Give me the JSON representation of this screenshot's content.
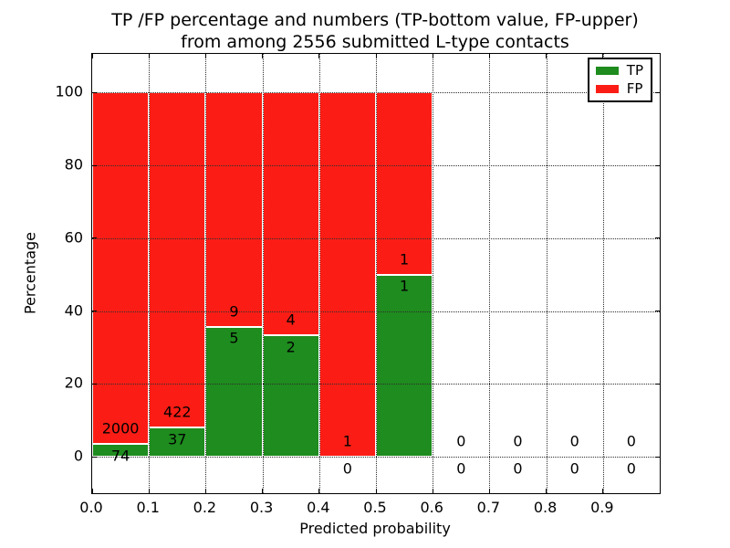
{
  "figure": {
    "title_line1": "TP /FP percentage and numbers (TP-bottom value, FP-upper)",
    "title_line2": "from among 2556 submitted L-type contacts",
    "xlabel": "Predicted probability",
    "ylabel": "Percentage"
  },
  "legend": {
    "entries": [
      {
        "label": "TP",
        "color": "#1e8c1e"
      },
      {
        "label": "FP",
        "color": "#fb1d15"
      }
    ]
  },
  "colors": {
    "tp": "#1e8c1e",
    "fp": "#fb1d15",
    "grid": "#2e2e2e",
    "bar_edge": "#ffffff",
    "text": "#000000",
    "background": "#ffffff"
  },
  "chart_data": {
    "type": "bar",
    "stacked": true,
    "title": "TP /FP percentage and numbers (TP-bottom value, FP-upper) from among 2556 submitted L-type contacts",
    "xlabel": "Predicted probability",
    "ylabel": "Percentage",
    "total_contacts": 2556,
    "grid": true,
    "legend_position": "upper right",
    "xlim": [
      0.0,
      1.0
    ],
    "ylim": [
      -10,
      110.6
    ],
    "bin_width": 0.1,
    "bin_starts": [
      0.0,
      0.1,
      0.2,
      0.3,
      0.4,
      0.5,
      0.6,
      0.7,
      0.8,
      0.9
    ],
    "x_tick_labels": [
      "0.0",
      "0.1",
      "0.2",
      "0.3",
      "0.4",
      "0.5",
      "0.6",
      "0.7",
      "0.8",
      "0.9"
    ],
    "y_tick_values": [
      0,
      20,
      40,
      60,
      80,
      100
    ],
    "y_tick_labels": [
      "0",
      "20",
      "40",
      "60",
      "80",
      "100"
    ],
    "series": [
      {
        "name": "TP",
        "color": "#1e8c1e",
        "counts": [
          74,
          37,
          5,
          2,
          0,
          1,
          0,
          0,
          0,
          0
        ],
        "percents": [
          3.57,
          8.06,
          35.71,
          33.33,
          0,
          50,
          0,
          0,
          0,
          0
        ]
      },
      {
        "name": "FP",
        "color": "#fb1d15",
        "counts": [
          2000,
          422,
          9,
          4,
          1,
          1,
          0,
          0,
          0,
          0
        ],
        "percents": [
          96.43,
          91.94,
          64.29,
          66.67,
          100,
          50,
          0,
          0,
          0,
          0
        ]
      }
    ]
  }
}
